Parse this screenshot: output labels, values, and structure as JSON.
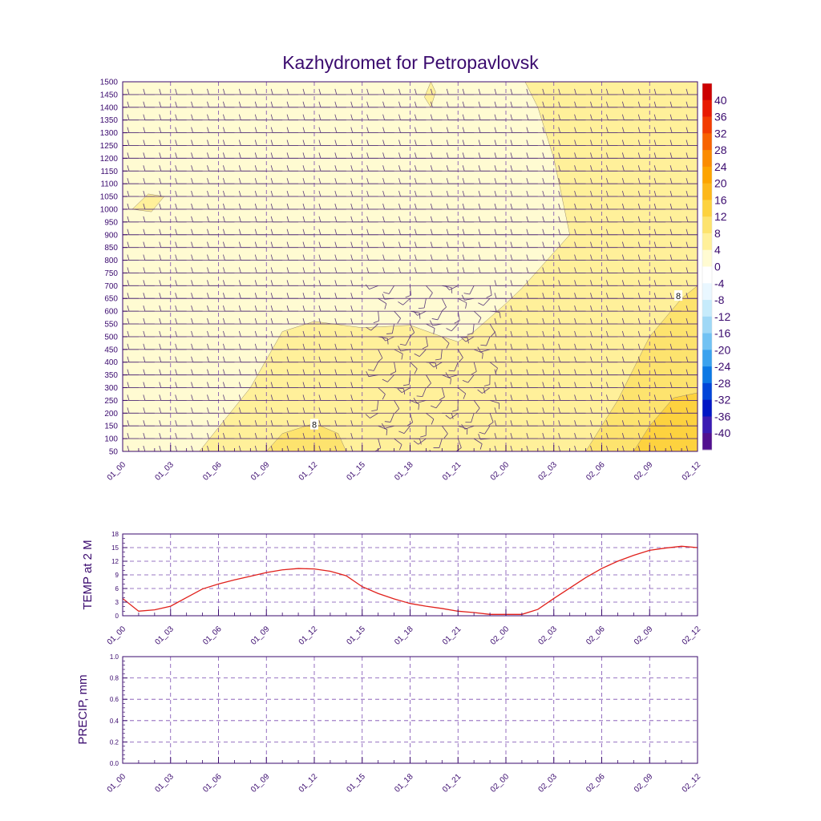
{
  "title": "Kazhydromet for Petropavlovsk",
  "colors": {
    "frame": "#3a0a6e",
    "text": "#3a0a6e",
    "grid": "#7a4bb0",
    "barb": "#5a3a7a",
    "temp_line": "#e0201b"
  },
  "time_labels": [
    "01_00",
    "01_03",
    "01_06",
    "01_09",
    "01_12",
    "01_15",
    "01_18",
    "01_21",
    "02_00",
    "02_03",
    "02_06",
    "02_09",
    "02_12"
  ],
  "chart_data": [
    {
      "type": "heatmap",
      "name": "cross-section",
      "x_unit": "hours from 01_00",
      "x_range": [
        0,
        36
      ],
      "y_range": [
        50,
        1500
      ],
      "y_ticks": [
        50,
        100,
        150,
        200,
        250,
        300,
        350,
        400,
        450,
        500,
        550,
        600,
        650,
        700,
        750,
        800,
        850,
        900,
        950,
        1000,
        1050,
        1100,
        1150,
        1200,
        1250,
        1300,
        1350,
        1400,
        1450,
        1500
      ],
      "contour_labels": [
        {
          "text": "8",
          "x": 12,
          "y": 155
        },
        {
          "text": "8",
          "x": 34.8,
          "y": 660
        }
      ],
      "colorbar": {
        "labels": [
          "40",
          "36",
          "32",
          "28",
          "24",
          "20",
          "16",
          "12",
          "8",
          "4",
          "0",
          "-4",
          "-8",
          "-12",
          "-16",
          "-20",
          "-24",
          "-28",
          "-32",
          "-36",
          "-40"
        ],
        "colors": [
          "#cc0000",
          "#e81a00",
          "#f23c00",
          "#f76300",
          "#fb8c00",
          "#fda400",
          "#fdb81a",
          "#fdd23f",
          "#fde36e",
          "#fff09a",
          "#fffbd2",
          "#ffffff",
          "#e9f7ff",
          "#c6ebfb",
          "#9fd8f6",
          "#71c2f3",
          "#3aa2ee",
          "#0b78e4",
          "#0045d8",
          "#0016c4",
          "#3a1bb3",
          "#52108f"
        ]
      },
      "regions": [
        {
          "level": "4 to 8",
          "color": "#fffbd2"
        },
        {
          "level": "8 to 12",
          "color": "#fff09a"
        },
        {
          "level": "12 to 16",
          "color": "#fde36e"
        },
        {
          "level": "16 to 20",
          "color": "#fdd23f"
        }
      ]
    },
    {
      "type": "line",
      "name": "temperature",
      "ylabel": "TEMP at 2 M",
      "x_unit": "hours from 01_00",
      "x_range": [
        0,
        36
      ],
      "ylim": [
        0,
        18
      ],
      "y_ticks": [
        "0",
        "3",
        "6",
        "9",
        "12",
        "15",
        "18"
      ],
      "x": [
        0,
        1,
        2,
        3,
        4,
        5,
        6,
        7,
        8,
        9,
        10,
        11,
        12,
        13,
        14,
        15,
        16,
        17,
        18,
        19,
        20,
        21,
        22,
        23,
        24,
        25,
        26,
        27,
        28,
        29,
        30,
        31,
        32,
        33,
        34,
        35,
        36
      ],
      "y": [
        3.8,
        1.0,
        1.3,
        2.1,
        4.0,
        5.9,
        7.0,
        7.9,
        8.7,
        9.5,
        10.1,
        10.4,
        10.3,
        9.8,
        8.8,
        6.4,
        4.9,
        3.7,
        2.7,
        2.1,
        1.6,
        1.0,
        0.7,
        0.3,
        0.3,
        0.3,
        1.4,
        3.8,
        6.1,
        8.4,
        10.4,
        12.0,
        13.3,
        14.4,
        14.9,
        15.3,
        15.0
      ]
    },
    {
      "type": "line",
      "name": "precipitation",
      "ylabel": "PRECIP, mm",
      "x_unit": "hours from 01_00",
      "x_range": [
        0,
        36
      ],
      "ylim": [
        0,
        1.0
      ],
      "y_ticks": [
        "0.0",
        "0.2",
        "0.4",
        "0.6",
        "0.8",
        "1.0"
      ],
      "x": [],
      "y": []
    }
  ]
}
